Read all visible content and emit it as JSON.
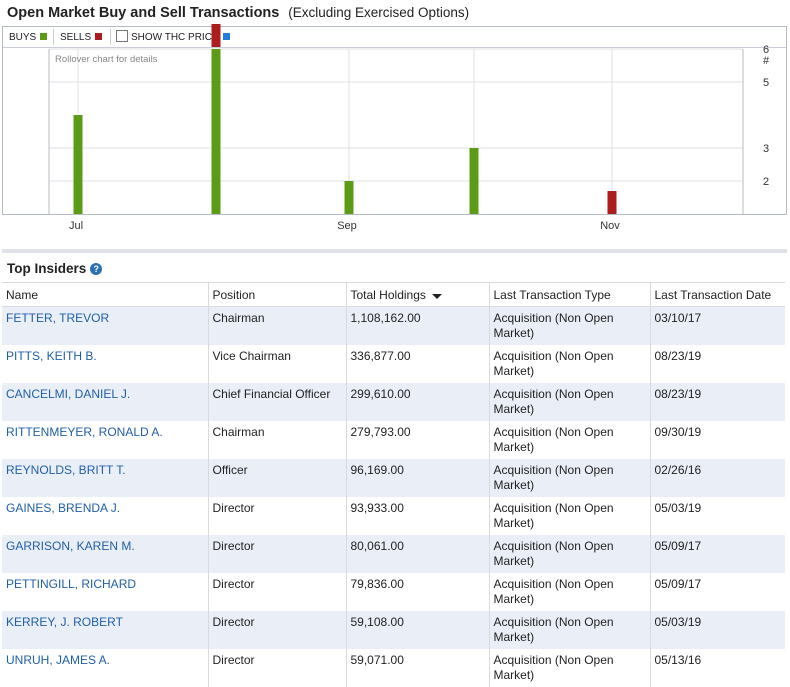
{
  "header": {
    "title": "Open Market Buy and Sell Transactions",
    "subtitle": "(Excluding Exercised Options)"
  },
  "legend": {
    "buys_label": "BUYS",
    "sells_label": "SELLS",
    "show_price_label": "SHOW THC PRICE",
    "buys_color": "#5b9b17",
    "sells_color": "#ac1e1e",
    "price_color": "#1f7ee0",
    "show_price_checked": false
  },
  "chart_note": "Rollover chart for details",
  "chart_data": {
    "type": "bar",
    "stacked": true,
    "x_tick_labels": [
      "Jul",
      "Sep",
      "Nov"
    ],
    "y_axis_title": "#",
    "y_ticks": [
      2,
      3,
      5,
      6
    ],
    "grid": true,
    "bars": [
      {
        "buys": 3,
        "sells": 0
      },
      {
        "buys": 5,
        "sells": 1
      },
      {
        "buys": 1,
        "sells": 0
      },
      {
        "buys": 2,
        "sells": 0
      },
      {
        "buys": 0,
        "sells": 1
      }
    ]
  },
  "insiders": {
    "heading": "Top Insiders",
    "columns": [
      "Name",
      "Position",
      "Total Holdings",
      "Last Transaction Type",
      "Last Transaction Date"
    ],
    "rows": [
      {
        "name": "FETTER, TREVOR",
        "position": "Chairman",
        "holdings": "1,108,162.00",
        "type_line1": "Acquisition (Non Open",
        "type_line2": "Market)",
        "date": "03/10/17"
      },
      {
        "name": "PITTS, KEITH B.",
        "position": "Vice Chairman",
        "holdings": "336,877.00",
        "type_line1": "Acquisition (Non Open",
        "type_line2": "Market)",
        "date": "08/23/19"
      },
      {
        "name": "CANCELMI, DANIEL J.",
        "position": "Chief Financial Officer",
        "holdings": "299,610.00",
        "type_line1": "Acquisition (Non Open",
        "type_line2": "Market)",
        "date": "08/23/19"
      },
      {
        "name": "RITTENMEYER, RONALD A.",
        "position": "Chairman",
        "holdings": "279,793.00",
        "type_line1": "Acquisition (Non Open",
        "type_line2": "Market)",
        "date": "09/30/19"
      },
      {
        "name": "REYNOLDS, BRITT T.",
        "position": "Officer",
        "holdings": "96,169.00",
        "type_line1": "Acquisition (Non Open",
        "type_line2": "Market)",
        "date": "02/26/16"
      },
      {
        "name": "GAINES, BRENDA J.",
        "position": "Director",
        "holdings": "93,933.00",
        "type_line1": "Acquisition (Non Open",
        "type_line2": "Market)",
        "date": "05/03/19"
      },
      {
        "name": "GARRISON, KAREN M.",
        "position": "Director",
        "holdings": "80,061.00",
        "type_line1": "Acquisition (Non Open",
        "type_line2": "Market)",
        "date": "05/09/17"
      },
      {
        "name": "PETTINGILL, RICHARD",
        "position": "Director",
        "holdings": "79,836.00",
        "type_line1": "Acquisition (Non Open",
        "type_line2": "Market)",
        "date": "05/09/17"
      },
      {
        "name": "KERREY, J. ROBERT",
        "position": "Director",
        "holdings": "59,108.00",
        "type_line1": "Acquisition (Non Open",
        "type_line2": "Market)",
        "date": "05/03/19"
      },
      {
        "name": "UNRUH, JAMES A.",
        "position": "Director",
        "holdings": "59,071.00",
        "type_line1": "Acquisition (Non Open",
        "type_line2": "Market)",
        "date": "05/13/16"
      }
    ]
  }
}
